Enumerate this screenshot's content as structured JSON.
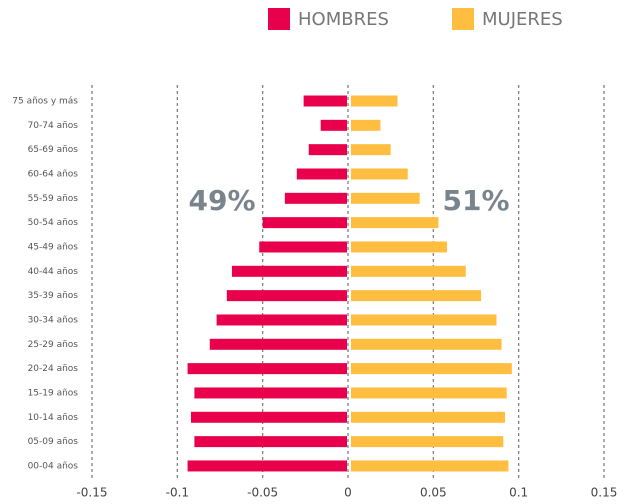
{
  "chart_data": {
    "type": "pyramid",
    "categories": [
      "75 años y más",
      "70-74 años",
      "65-69 años",
      "60-64 años",
      "55-59 años",
      "50-54 años",
      "45-49 años",
      "40-44 años",
      "35-39 años",
      "30-34 años",
      "25-29 años",
      "20-24 años",
      "15-19 años",
      "10-14 años",
      "05-09 años",
      "00-04 años"
    ],
    "series": [
      {
        "name": "HOMBRES",
        "color": "#e8004c",
        "values": [
          -0.026,
          -0.016,
          -0.023,
          -0.03,
          -0.037,
          -0.05,
          -0.052,
          -0.068,
          -0.071,
          -0.077,
          -0.081,
          -0.094,
          -0.09,
          -0.092,
          -0.09,
          -0.094
        ]
      },
      {
        "name": "MUJERES",
        "color": "#ffbe3f",
        "values": [
          0.029,
          0.019,
          0.025,
          0.035,
          0.042,
          0.053,
          0.058,
          0.069,
          0.078,
          0.087,
          0.09,
          0.096,
          0.093,
          0.092,
          0.091,
          0.094
        ]
      }
    ],
    "annotations": [
      "49%",
      "51%"
    ],
    "xlim": [
      -0.15,
      0.15
    ],
    "xticks": [
      -0.15,
      -0.1,
      -0.05,
      0,
      0.05,
      0.1,
      0.15
    ],
    "grid": true,
    "legend": "top"
  }
}
